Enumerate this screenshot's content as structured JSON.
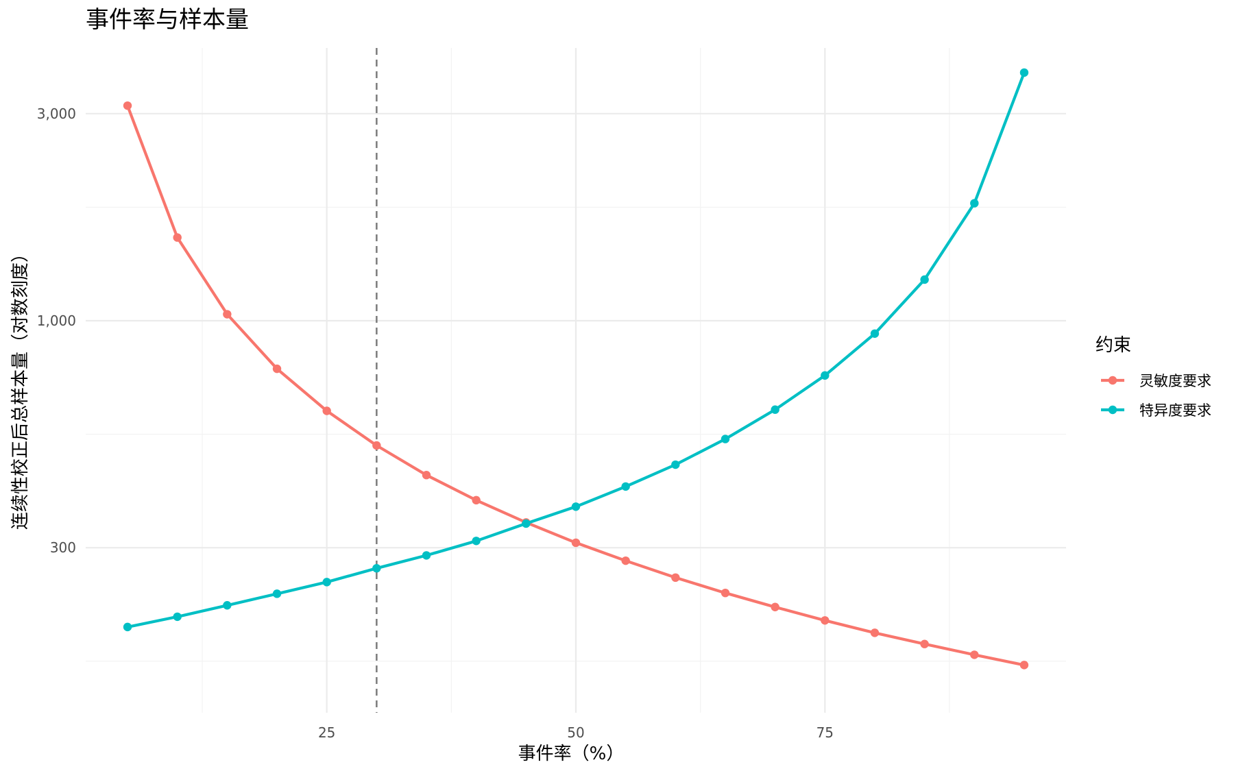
{
  "chart_data": {
    "type": "line",
    "title": "事件率与样本量",
    "xlabel": "事件率（%）",
    "ylabel": "连续性校正后总样本量（对数刻度）",
    "x_scale": "linear",
    "y_scale": "log10",
    "xlim": [
      0.8,
      99.2
    ],
    "ylim": [
      125,
      4250
    ],
    "x_ticks": [
      25,
      50,
      75
    ],
    "x_tick_labels": [
      "25",
      "50",
      "75"
    ],
    "y_ticks": [
      300,
      1000,
      3000
    ],
    "y_tick_labels": [
      "300",
      "1,000",
      "3,000"
    ],
    "grid": true,
    "reference_line": {
      "x": 30,
      "style": "dashed",
      "color": "#7f7f7f"
    },
    "legend": {
      "title": "约束",
      "position": "right"
    },
    "x": [
      5,
      10,
      15,
      20,
      25,
      30,
      35,
      40,
      45,
      50,
      55,
      60,
      65,
      70,
      75,
      80,
      85,
      90,
      95
    ],
    "series": [
      {
        "name": "灵敏度要求",
        "color": "#F8766D",
        "values": [
          3130,
          1555,
          1035,
          775,
          620,
          516,
          441,
          386,
          343,
          308,
          280,
          256,
          236,
          219,
          204,
          191,
          180,
          170,
          161
        ]
      },
      {
        "name": "特异度要求",
        "color": "#00BFC4",
        "values": [
          197,
          208,
          221,
          235,
          250,
          269,
          288,
          311,
          341,
          373,
          415,
          466,
          534,
          624,
          748,
          934,
          1244,
          1865,
          3730
        ]
      }
    ]
  }
}
